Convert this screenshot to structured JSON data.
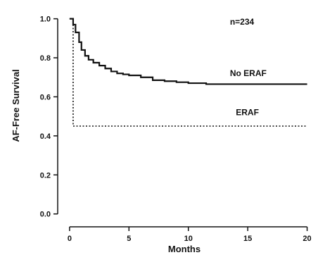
{
  "chart_data": {
    "type": "line",
    "xlabel": "Months",
    "ylabel": "AF-Free Survival",
    "xlim": [
      -1,
      20.5
    ],
    "ylim": [
      -0.03,
      1.06
    ],
    "x_ticks": [
      0,
      5,
      10,
      15,
      20
    ],
    "y_ticks": [
      0.0,
      0.2,
      0.4,
      0.6,
      0.8,
      1.0
    ],
    "y_tick_labels": [
      "0.0",
      "0.2",
      "0.4",
      "0.6",
      "0.8",
      "1.0"
    ],
    "grid": false,
    "annotations": [
      {
        "text": "n=234",
        "x": 13.5,
        "y": 0.985
      },
      {
        "text": "No ERAF",
        "x": 13.5,
        "y": 0.72
      },
      {
        "text": "ERAF",
        "x": 14.0,
        "y": 0.52
      }
    ],
    "series": [
      {
        "name": "No ERAF",
        "style": "solid",
        "color": "#111111",
        "x": [
          0,
          0.3,
          0.5,
          0.8,
          1.0,
          1.3,
          1.6,
          2.0,
          2.5,
          3.0,
          3.5,
          4.0,
          4.5,
          5.0,
          6.0,
          7.0,
          8.0,
          9.0,
          10.0,
          11.5,
          13.0,
          15.0,
          17.0,
          20.0
        ],
        "y": [
          1.0,
          0.97,
          0.93,
          0.88,
          0.84,
          0.81,
          0.79,
          0.775,
          0.76,
          0.745,
          0.73,
          0.72,
          0.715,
          0.71,
          0.7,
          0.685,
          0.68,
          0.675,
          0.67,
          0.665,
          0.665,
          0.665,
          0.665,
          0.665
        ]
      },
      {
        "name": "ERAF",
        "style": "dotted",
        "color": "#111111",
        "x": [
          0,
          0.3,
          0.3,
          20.0
        ],
        "y": [
          1.0,
          1.0,
          0.45,
          0.45
        ]
      }
    ]
  }
}
